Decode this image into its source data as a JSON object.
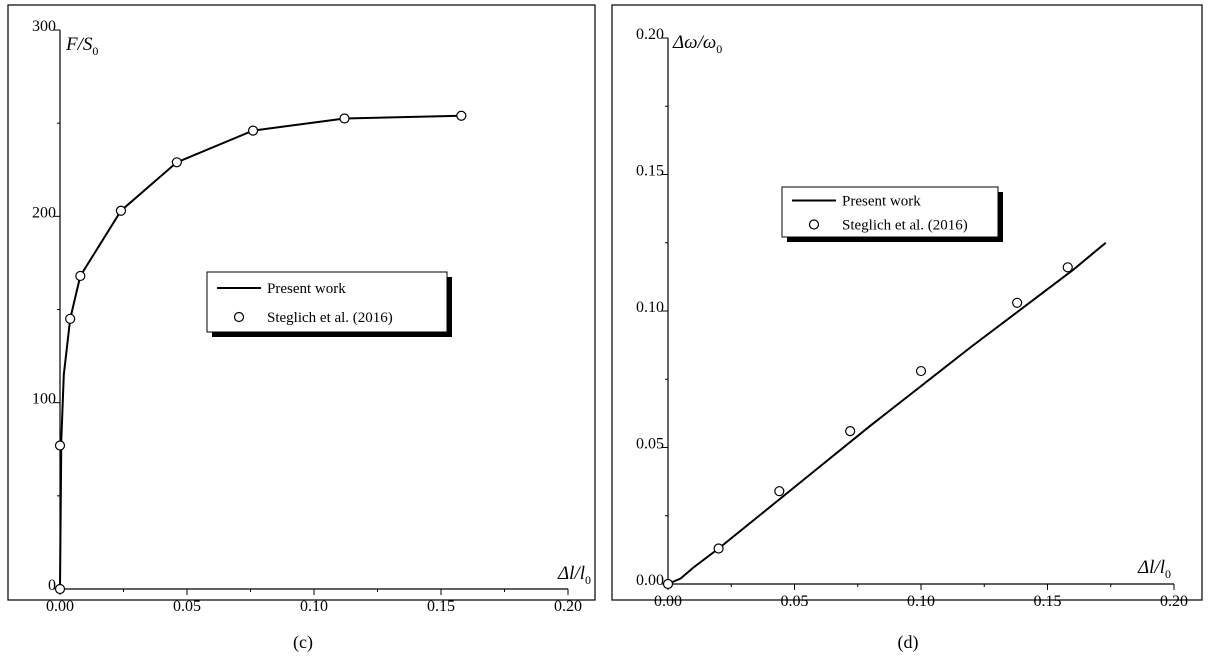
{
  "chart_data": [
    {
      "type": "line",
      "panel_label": "(c)",
      "ylabel": "F/S",
      "ylabel_sub": "0",
      "xlabel": "Δl/l",
      "xlabel_sub": "0",
      "xlim": [
        0,
        0.2
      ],
      "ylim": [
        0,
        300
      ],
      "x_ticks": [
        "0.00",
        "0.05",
        "0.10",
        "0.15",
        "0.20"
      ],
      "y_ticks": [
        "0",
        "100",
        "200",
        "300"
      ],
      "legend": {
        "placement": "center-right",
        "entries": [
          "Present work",
          "Steglich et al. (2016)"
        ]
      },
      "series": [
        {
          "name": "Present work",
          "style": "line",
          "x": [
            0.0,
            0.0005,
            0.0015,
            0.004,
            0.008,
            0.024,
            0.046,
            0.076,
            0.112,
            0.158
          ],
          "y": [
            0,
            80,
            115,
            145,
            168,
            203,
            229,
            246,
            252.5,
            254
          ]
        },
        {
          "name": "Steglich et al. (2016)",
          "style": "markers",
          "x": [
            0.0,
            0.0,
            0.004,
            0.008,
            0.024,
            0.046,
            0.076,
            0.112,
            0.158
          ],
          "y": [
            0,
            77,
            145,
            168,
            203,
            229,
            246,
            252.5,
            254
          ]
        }
      ]
    },
    {
      "type": "line",
      "panel_label": "(d)",
      "ylabel": "Δω/ω",
      "ylabel_sub": "0",
      "xlabel": "Δl/l",
      "xlabel_sub": "0",
      "xlim": [
        0,
        0.2
      ],
      "ylim": [
        0,
        0.2
      ],
      "x_ticks": [
        "0.00",
        "0.05",
        "0.10",
        "0.15",
        "0.20"
      ],
      "y_ticks": [
        "0.00",
        "0.05",
        "0.10",
        "0.15",
        "0.20"
      ],
      "legend": {
        "placement": "upper-center",
        "entries": [
          "Present work",
          "Steglich et al. (2016)"
        ]
      },
      "series": [
        {
          "name": "Present work",
          "style": "line",
          "x": [
            0.0,
            0.005,
            0.01,
            0.02,
            0.04,
            0.06,
            0.08,
            0.1,
            0.12,
            0.14,
            0.16,
            0.173
          ],
          "y": [
            0.0,
            0.002,
            0.006,
            0.013,
            0.028,
            0.043,
            0.058,
            0.0725,
            0.087,
            0.101,
            0.115,
            0.125
          ]
        },
        {
          "name": "Steglich et al. (2016)",
          "style": "markers",
          "x": [
            0.0,
            0.02,
            0.044,
            0.072,
            0.1,
            0.138,
            0.158
          ],
          "y": [
            0.0,
            0.013,
            0.034,
            0.056,
            0.078,
            0.103,
            0.116
          ]
        }
      ]
    }
  ]
}
